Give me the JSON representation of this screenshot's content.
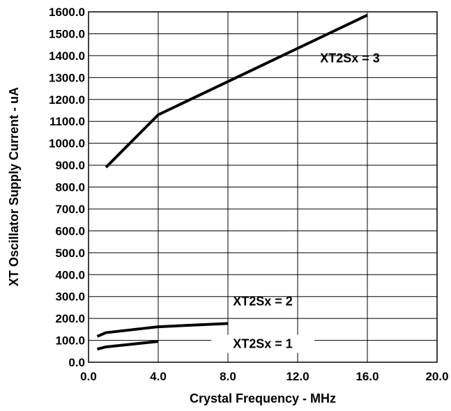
{
  "chart_data": {
    "type": "line",
    "xlabel": "Crystal Frequency - MHz",
    "ylabel": "XT Oscillator Supply Current  - uA",
    "xlim": [
      0,
      20
    ],
    "ylim": [
      0,
      1600
    ],
    "x_ticks": [
      "0.0",
      "4.0",
      "8.0",
      "12.0",
      "16.0",
      "20.0"
    ],
    "y_ticks": [
      "0.0",
      "100.0",
      "200.0",
      "300.0",
      "400.0",
      "500.0",
      "600.0",
      "700.0",
      "800.0",
      "900.0",
      "1000.0",
      "1100.0",
      "1200.0",
      "1300.0",
      "1400.0",
      "1500.0",
      "1600.0"
    ],
    "grid": true,
    "series": [
      {
        "name": "XT2Sx = 3",
        "x": [
          1,
          4,
          16
        ],
        "y": [
          890,
          1130,
          1585
        ]
      },
      {
        "name": "XT2Sx = 2",
        "x": [
          0.5,
          1,
          4,
          8
        ],
        "y": [
          118,
          135,
          162,
          177
        ]
      },
      {
        "name": "XT2Sx = 1",
        "x": [
          0.5,
          1,
          4
        ],
        "y": [
          60,
          70,
          95
        ]
      }
    ]
  }
}
